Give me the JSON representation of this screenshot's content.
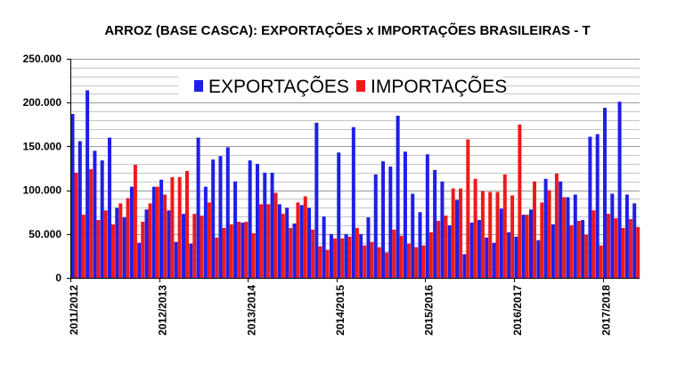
{
  "chart_data": {
    "type": "bar",
    "title": "ARROZ (BASE CASCA): EXPORTAÇÕES x IMPORTAÇÕES BRASILEIRAS - T",
    "xlabel": "",
    "ylabel": "",
    "ylim": [
      0,
      250000
    ],
    "yticks": [
      "0",
      "50.000",
      "100.000",
      "150.000",
      "200.000",
      "250.000"
    ],
    "grid": true,
    "legend_position": "top-center",
    "x_tick_labels": [
      {
        "label": "2011/2012",
        "index": 0
      },
      {
        "label": "2012/2013",
        "index": 12
      },
      {
        "label": "2013/2014",
        "index": 24
      },
      {
        "label": "2014/2015",
        "index": 36
      },
      {
        "label": "2015/2016",
        "index": 48
      },
      {
        "label": "2016/2017",
        "index": 60
      },
      {
        "label": "2017/2018",
        "index": 72
      }
    ],
    "series": [
      {
        "name": "EXPORTAÇÕES",
        "color": "#1f1fe6",
        "values": [
          187000,
          156000,
          214000,
          145000,
          134000,
          160000,
          80000,
          69000,
          104000,
          40000,
          78000,
          104000,
          112000,
          77000,
          41000,
          73000,
          39000,
          160000,
          104000,
          135000,
          139000,
          149000,
          110000,
          63000,
          134000,
          130000,
          120000,
          120000,
          84000,
          80000,
          62000,
          83000,
          80000,
          177000,
          70000,
          50000,
          143000,
          50000,
          172000,
          50000,
          69000,
          118000,
          133000,
          127000,
          185000,
          144000,
          96000,
          75000,
          141000,
          123000,
          110000,
          60000,
          89000,
          27000,
          63000,
          66000,
          46000,
          40000,
          79000,
          52000,
          47000,
          72000,
          78000,
          43000,
          113000,
          61000,
          110000,
          92000,
          95000,
          66000,
          161000,
          164000,
          194000,
          96000,
          201000,
          95000,
          85000
        ]
      },
      {
        "name": "IMPORTAÇÕES",
        "color": "#ee1a1a",
        "values": [
          120000,
          72000,
          124000,
          66000,
          77000,
          61000,
          85000,
          91000,
          129000,
          64000,
          85000,
          104000,
          95000,
          115000,
          115000,
          122000,
          73000,
          71000,
          86000,
          46000,
          57000,
          61000,
          64000,
          64000,
          51000,
          84000,
          84000,
          97000,
          73000,
          57000,
          86000,
          93000,
          55000,
          36000,
          32000,
          45000,
          45000,
          47000,
          57000,
          37000,
          41000,
          35000,
          29000,
          55000,
          48000,
          39000,
          35000,
          37000,
          52000,
          65000,
          71000,
          102000,
          102000,
          158000,
          113000,
          99000,
          98000,
          98000,
          118000,
          94000,
          175000,
          72000,
          110000,
          86000,
          100000,
          119000,
          92000,
          60000,
          65000,
          49000,
          77000,
          37000,
          73000,
          68000,
          57000,
          67000,
          58000
        ]
      }
    ]
  }
}
